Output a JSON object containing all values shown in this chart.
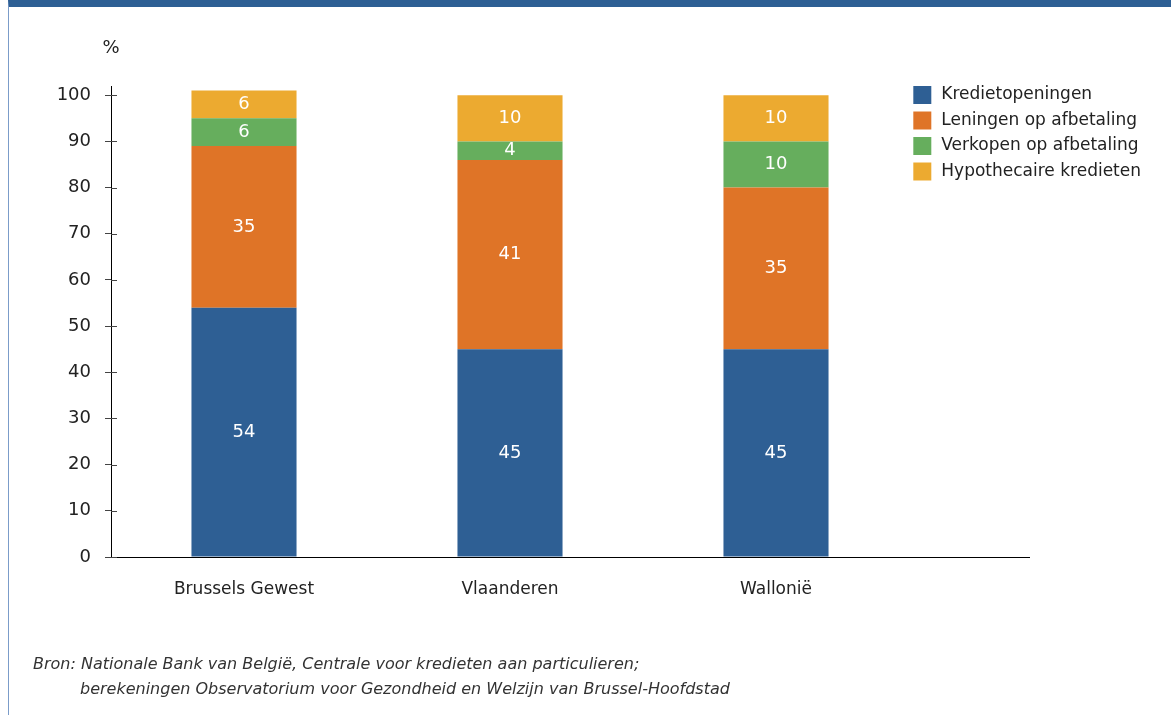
{
  "chart_data": {
    "type": "bar",
    "stacked": true,
    "ylabel": "%",
    "categories": [
      "Brussels Gewest",
      "Vlaanderen",
      "Wallonië"
    ],
    "series": [
      {
        "name": "Kredietopeningen",
        "color": "#2e5f94",
        "values": [
          54,
          45,
          45
        ]
      },
      {
        "name": "Leningen op afbetaling",
        "color": "#df7427",
        "values": [
          35,
          41,
          35
        ]
      },
      {
        "name": "Verkopen op afbetaling",
        "color": "#66ae5d",
        "values": [
          6,
          4,
          10
        ]
      },
      {
        "name": "Hypothecaire kredieten",
        "color": "#ecaa30",
        "values": [
          6,
          10,
          10
        ]
      }
    ],
    "ylim": [
      0,
      102
    ],
    "yticks": [
      0,
      10,
      20,
      30,
      40,
      50,
      60,
      70,
      80,
      90,
      100
    ],
    "legend": "top right",
    "data_labels": true,
    "annotations": [
      "Bron: Nationale Bank van België, Centrale voor kredieten aan particulieren;\nberekeningen Observatorium voor Gezondheid en Welzijn van Brussel-Hoofdstad"
    ]
  }
}
